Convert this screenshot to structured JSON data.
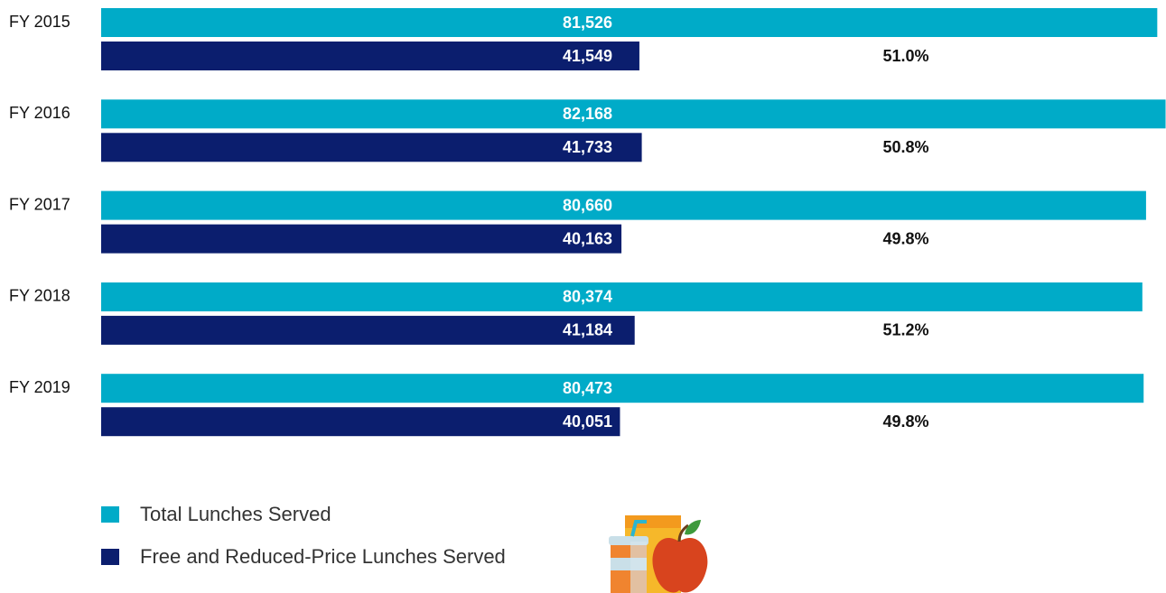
{
  "chart_data": {
    "type": "bar",
    "orientation": "horizontal",
    "categories": [
      "FY 2015",
      "FY 2016",
      "FY 2017",
      "FY 2018",
      "FY 2019"
    ],
    "series": [
      {
        "name": "Total Lunches Served",
        "color": "#00abc8",
        "values": [
          81526,
          82168,
          80660,
          80374,
          80473
        ],
        "value_labels": [
          "81,526",
          "82,168",
          "80,660",
          "80,374",
          "80,473"
        ]
      },
      {
        "name": "Free and Reduced-Price Lunches Served",
        "color": "#0b1e6e",
        "values": [
          41549,
          41733,
          40163,
          41184,
          40051
        ],
        "value_labels": [
          "41,549",
          "41,733",
          "40,163",
          "41,184",
          "40,051"
        ]
      }
    ],
    "annotations": [
      "51.0%",
      "50.8%",
      "49.8%",
      "51.2%",
      "49.8%"
    ],
    "xlim": [
      0,
      82200
    ]
  }
}
